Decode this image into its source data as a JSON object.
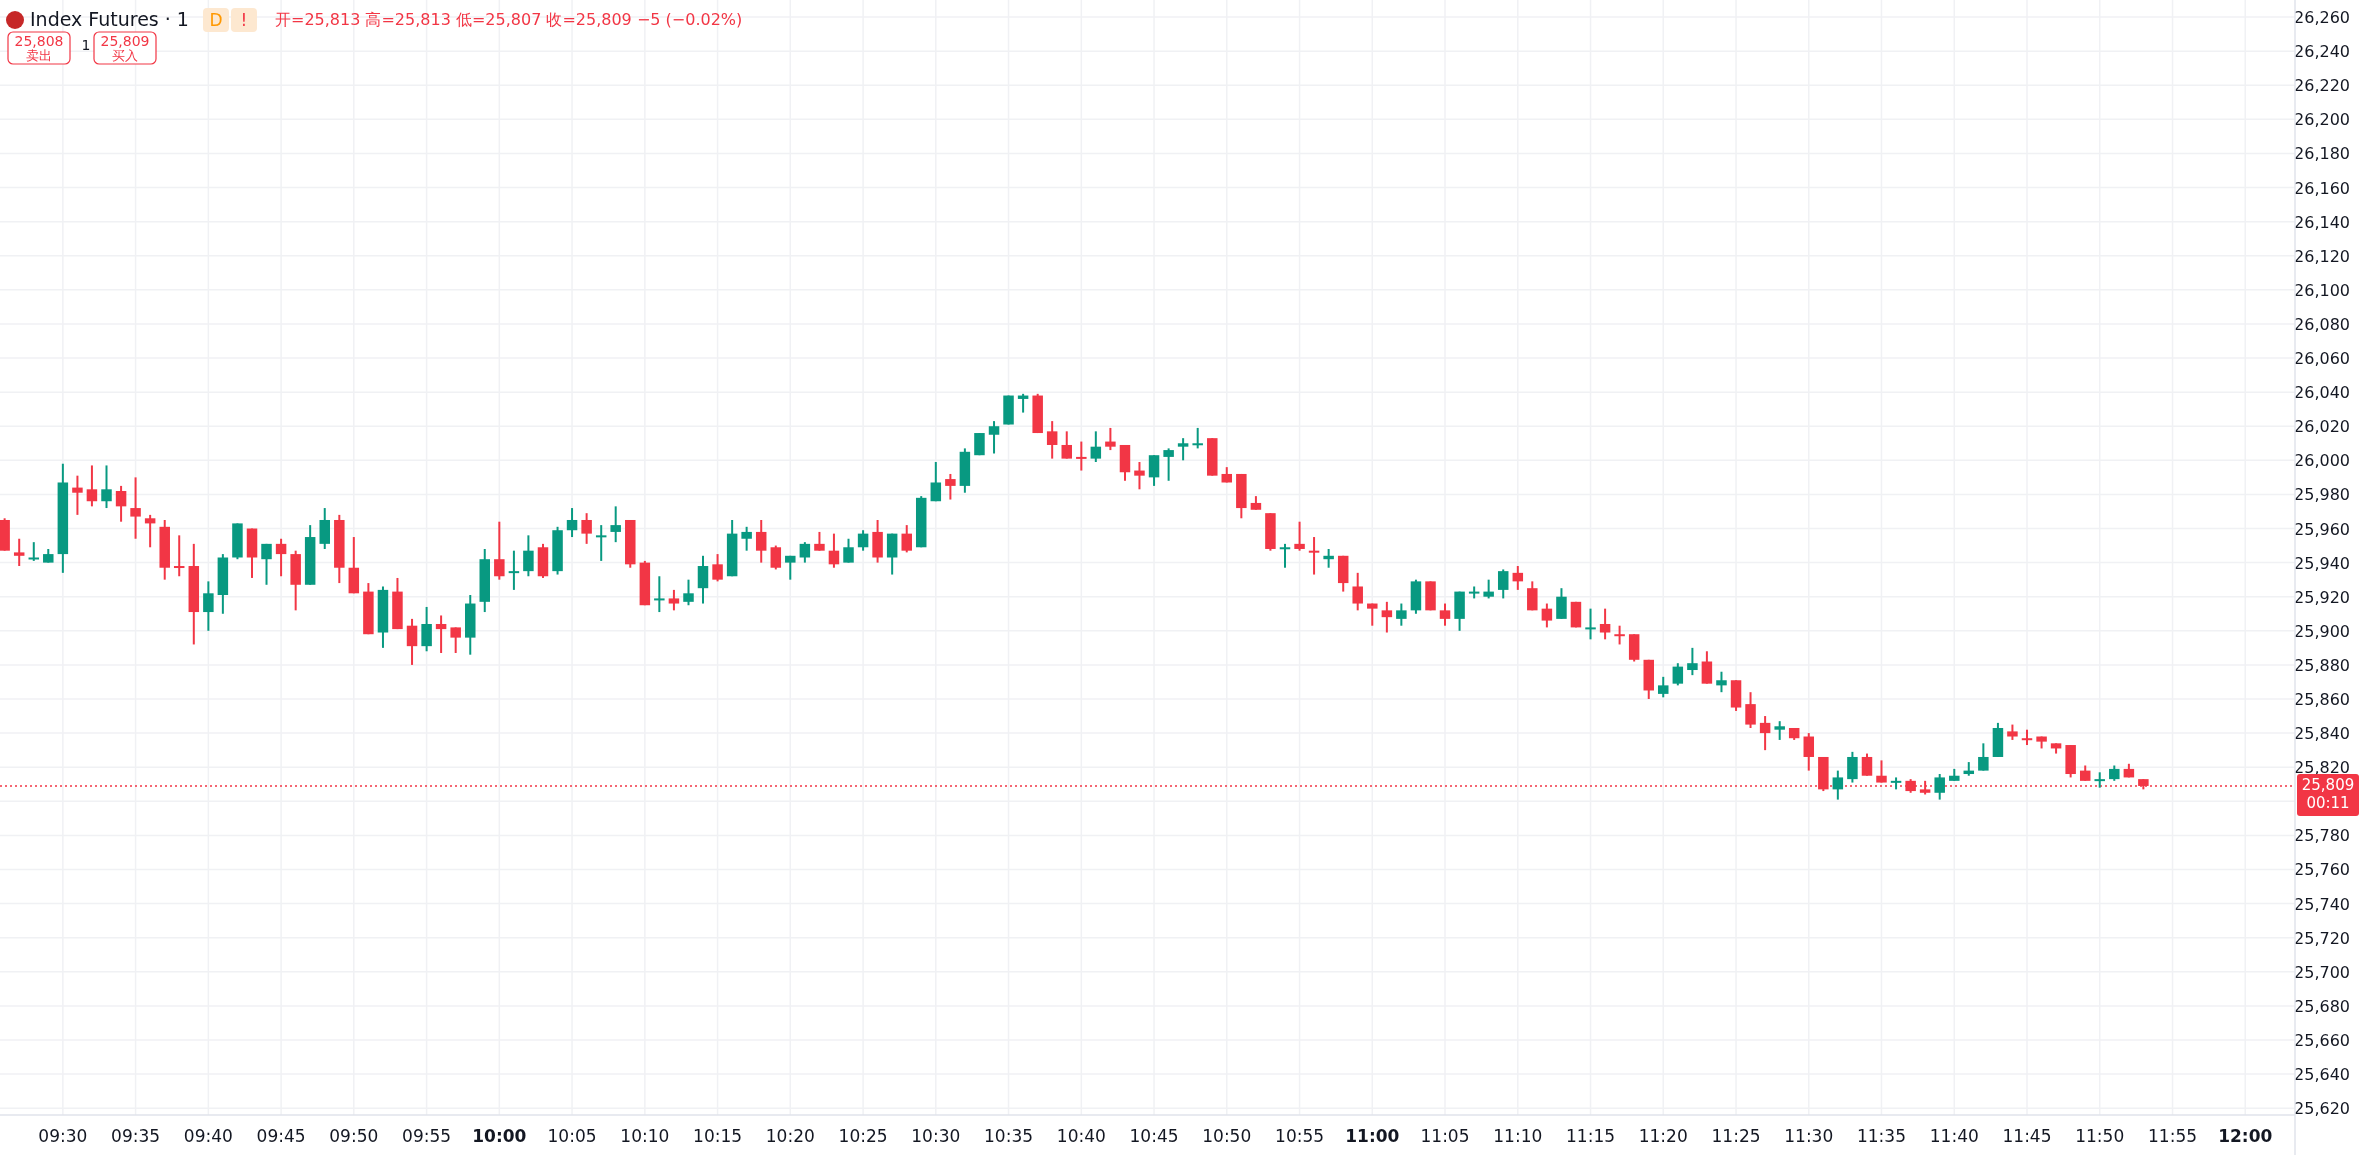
{
  "chart_data": {
    "type": "candlestick",
    "title": "Index Futures · 1",
    "subtitle": "开=25,813 高=25,813 低=25,807 收=25,809 −5 (−0.02%)",
    "annotations": [
      "D",
      "!",
      "25,808\n卖出",
      "1",
      "25,809\n买入"
    ],
    "x": [
      9.4333,
      9.45,
      9.4667,
      9.4833,
      9.5,
      9.5167,
      9.5333,
      9.55,
      9.5667,
      9.5833,
      9.6,
      9.6167,
      9.6333,
      9.65,
      9.6667,
      9.6833,
      9.7,
      9.7167,
      9.7333,
      9.75,
      9.7667,
      9.7833,
      9.8,
      9.8167,
      9.8333,
      9.85,
      9.8667,
      9.8833,
      9.9,
      9.9167,
      9.9333,
      9.95,
      9.9667,
      9.9833,
      10,
      10.0167,
      10.0333,
      10.05,
      10.0667,
      10.0833,
      10.1,
      10.1167,
      10.1333,
      10.15,
      10.1667,
      10.1833,
      10.2,
      10.2167,
      10.2333,
      10.25,
      10.2667,
      10.2833,
      10.3,
      10.3167,
      10.3333,
      10.35,
      10.3667,
      10.3833,
      10.4,
      10.4167,
      10.4333,
      10.45,
      10.4667,
      10.4833,
      10.5,
      10.5167,
      10.5333,
      10.55,
      10.5667,
      10.5833,
      10.6,
      10.6167,
      10.6333,
      10.65,
      10.6667,
      10.6833,
      10.7,
      10.7167,
      10.7333,
      10.75,
      10.7667,
      10.7833,
      10.8,
      10.8167,
      10.8333,
      10.85,
      10.8667,
      10.8833,
      10.9,
      10.9167,
      10.9333,
      10.95,
      10.9667,
      10.9833,
      11,
      11.0167,
      11.0333,
      11.05,
      11.0667,
      11.0833,
      11.1,
      11.1167,
      11.1333,
      11.15,
      11.1667,
      11.1833,
      11.2,
      11.2167,
      11.2333,
      11.25,
      11.2667,
      11.2833,
      11.3,
      11.3167,
      11.3333,
      11.35,
      11.3667,
      11.3833,
      11.4,
      11.4167,
      11.4333,
      11.45,
      11.4667,
      11.4833,
      11.5,
      11.5167,
      11.5333,
      11.55,
      11.5667,
      11.5833,
      11.6,
      11.6167,
      11.6333,
      11.65,
      11.6667,
      11.6833,
      11.7,
      11.7167,
      11.7333,
      11.75,
      11.7667,
      11.7833,
      11.8,
      11.8167,
      11.8333,
      11.85,
      11.8667,
      11.8833
    ],
    "ohlc": [
      [
        25965,
        25966,
        25947,
        25947
      ],
      [
        25946,
        25954,
        25938,
        25944
      ],
      [
        25942,
        25952,
        25941,
        25943
      ],
      [
        25940,
        25948,
        25940,
        25945
      ],
      [
        25945,
        25998,
        25934,
        25987
      ],
      [
        25984,
        25991,
        25968,
        25981
      ],
      [
        25983,
        25997,
        25973,
        25976
      ],
      [
        25976,
        25997,
        25972,
        25983
      ],
      [
        25982,
        25985,
        25964,
        25973
      ],
      [
        25972,
        25990,
        25954,
        25967
      ],
      [
        25966,
        25968,
        25949,
        25963
      ],
      [
        25961,
        25965,
        25930,
        25937
      ],
      [
        25938,
        25956,
        25932,
        25937
      ],
      [
        25938,
        25951,
        25892,
        25911
      ],
      [
        25911,
        25929,
        25900,
        25922
      ],
      [
        25921,
        25945,
        25910,
        25943
      ],
      [
        25943,
        25963,
        25942,
        25963
      ],
      [
        25960,
        25960,
        25931,
        25943
      ],
      [
        25942,
        25951,
        25927,
        25951
      ],
      [
        25951,
        25954,
        25932,
        25945
      ],
      [
        25945,
        25947,
        25912,
        25927
      ],
      [
        25927,
        25962,
        25927,
        25955
      ],
      [
        25951,
        25972,
        25948,
        25965
      ],
      [
        25965,
        25968,
        25928,
        25937
      ],
      [
        25937,
        25955,
        25922,
        25922
      ],
      [
        25923,
        25928,
        25898,
        25898
      ],
      [
        25899,
        25926,
        25890,
        25924
      ],
      [
        25923,
        25931,
        25901,
        25901
      ],
      [
        25903,
        25907,
        25880,
        25891
      ],
      [
        25891,
        25914,
        25888,
        25904
      ],
      [
        25904,
        25909,
        25887,
        25901
      ],
      [
        25902,
        25902,
        25887,
        25896
      ],
      [
        25896,
        25921,
        25886,
        25916
      ],
      [
        25917,
        25948,
        25911,
        25942
      ],
      [
        25942,
        25964,
        25930,
        25932
      ],
      [
        25934,
        25947,
        25924,
        25935
      ],
      [
        25935,
        25956,
        25932,
        25947
      ],
      [
        25949,
        25951,
        25931,
        25932
      ],
      [
        25935,
        25961,
        25933,
        25959
      ],
      [
        25959,
        25972,
        25955,
        25965
      ],
      [
        25965,
        25969,
        25951,
        25957
      ],
      [
        25955,
        25962,
        25941,
        25956
      ],
      [
        25958,
        25973,
        25952,
        25962
      ],
      [
        25965,
        25965,
        25937,
        25939
      ],
      [
        25940,
        25941,
        25915,
        25915
      ],
      [
        25918,
        25932,
        25911,
        25919
      ],
      [
        25919,
        25924,
        25912,
        25916
      ],
      [
        25917,
        25930,
        25915,
        25922
      ],
      [
        25925,
        25944,
        25916,
        25938
      ],
      [
        25939,
        25945,
        25929,
        25930
      ],
      [
        25932,
        25965,
        25932,
        25957
      ],
      [
        25954,
        25961,
        25947,
        25958
      ],
      [
        25958,
        25965,
        25940,
        25947
      ],
      [
        25949,
        25950,
        25936,
        25937
      ],
      [
        25940,
        25944,
        25930,
        25944
      ],
      [
        25943,
        25952,
        25940,
        25951
      ],
      [
        25951,
        25958,
        25947,
        25947
      ],
      [
        25947,
        25957,
        25937,
        25939
      ],
      [
        25940,
        25954,
        25940,
        25949
      ],
      [
        25949,
        25959,
        25947,
        25957
      ],
      [
        25958,
        25965,
        25940,
        25943
      ],
      [
        25943,
        25957,
        25933,
        25957
      ],
      [
        25957,
        25962,
        25946,
        25947
      ],
      [
        25949,
        25979,
        25949,
        25978
      ],
      [
        25976,
        25999,
        25976,
        25987
      ],
      [
        25989,
        25992,
        25977,
        25985
      ],
      [
        25985,
        26007,
        25981,
        26005
      ],
      [
        26003,
        26016,
        26003,
        26016
      ],
      [
        26015,
        26023,
        26004,
        26020
      ],
      [
        26021,
        26038,
        26021,
        26038
      ],
      [
        26036,
        26039,
        26028,
        26038
      ],
      [
        26038,
        26039,
        26016,
        26016
      ],
      [
        26017,
        26023,
        26001,
        26009
      ],
      [
        26009,
        26017,
        26001,
        26001
      ],
      [
        26002,
        26011,
        25994,
        26001
      ],
      [
        26001,
        26017,
        25999,
        26008
      ],
      [
        26011,
        26019,
        26006,
        26008
      ],
      [
        26009,
        26009,
        25988,
        25993
      ],
      [
        25994,
        25999,
        25983,
        25991
      ],
      [
        25990,
        26003,
        25985,
        26003
      ],
      [
        26002,
        26007,
        25988,
        26006
      ],
      [
        26008,
        26013,
        26000,
        26010
      ],
      [
        26009,
        26019,
        26007,
        26010
      ],
      [
        26013,
        26013,
        25991,
        25991
      ],
      [
        25992,
        25996,
        25987,
        25987
      ],
      [
        25992,
        25992,
        25966,
        25972
      ],
      [
        25975,
        25979,
        25971,
        25971
      ],
      [
        25969,
        25969,
        25947,
        25948
      ],
      [
        25948,
        25951,
        25937,
        25949
      ],
      [
        25951,
        25964,
        25947,
        25948
      ],
      [
        25947,
        25955,
        25933,
        25946
      ],
      [
        25942,
        25948,
        25937,
        25944
      ],
      [
        25944,
        25944,
        25923,
        25928
      ],
      [
        25926,
        25934,
        25912,
        25916
      ],
      [
        25916,
        25916,
        25903,
        25913
      ],
      [
        25912,
        25917,
        25899,
        25908
      ],
      [
        25907,
        25916,
        25903,
        25912
      ],
      [
        25912,
        25930,
        25910,
        25929
      ],
      [
        25929,
        25929,
        25912,
        25912
      ],
      [
        25912,
        25916,
        25903,
        25907
      ],
      [
        25907,
        25923,
        25900,
        25923
      ],
      [
        25922,
        25926,
        25919,
        25923
      ],
      [
        25920,
        25930,
        25919,
        25923
      ],
      [
        25924,
        25936,
        25919,
        25935
      ],
      [
        25934,
        25938,
        25924,
        25929
      ],
      [
        25925,
        25929,
        25912,
        25912
      ],
      [
        25913,
        25916,
        25902,
        25906
      ],
      [
        25907,
        25925,
        25907,
        25920
      ],
      [
        25917,
        25917,
        25902,
        25902
      ],
      [
        25901,
        25913,
        25895,
        25902
      ],
      [
        25904,
        25913,
        25895,
        25899
      ],
      [
        25898,
        25903,
        25892,
        25897
      ],
      [
        25898,
        25898,
        25882,
        25883
      ],
      [
        25883,
        25883,
        25860,
        25865
      ],
      [
        25863,
        25873,
        25861,
        25868
      ],
      [
        25869,
        25881,
        25868,
        25879
      ],
      [
        25877,
        25890,
        25874,
        25881
      ],
      [
        25882,
        25888,
        25869,
        25869
      ],
      [
        25868,
        25876,
        25864,
        25871
      ],
      [
        25871,
        25871,
        25853,
        25855
      ],
      [
        25857,
        25864,
        25843,
        25845
      ],
      [
        25846,
        25850,
        25830,
        25840
      ],
      [
        25842,
        25847,
        25836,
        25844
      ],
      [
        25843,
        25843,
        25836,
        25837
      ],
      [
        25838,
        25840,
        25818,
        25826
      ],
      [
        25826,
        25826,
        25806,
        25807
      ],
      [
        25807,
        25818,
        25801,
        25814
      ],
      [
        25813,
        25829,
        25811,
        25826
      ],
      [
        25826,
        25828,
        25815,
        25815
      ],
      [
        25815,
        25824,
        25811,
        25811
      ],
      [
        25811,
        25814,
        25807,
        25812
      ],
      [
        25812,
        25813,
        25805,
        25806
      ],
      [
        25807,
        25812,
        25804,
        25805
      ],
      [
        25805,
        25816,
        25801,
        25814
      ],
      [
        25812,
        25819,
        25812,
        25815
      ],
      [
        25816,
        25823,
        25815,
        25818
      ],
      [
        25818,
        25834,
        25818,
        25826
      ],
      [
        25826,
        25846,
        25826,
        25843
      ],
      [
        25841,
        25845,
        25836,
        25838
      ],
      [
        25837,
        25842,
        25833,
        25836
      ],
      [
        25838,
        25838,
        25831,
        25835
      ],
      [
        25834,
        25834,
        25828,
        25831
      ],
      [
        25833,
        25833,
        25814,
        25816
      ],
      [
        25818,
        25821,
        25812,
        25812
      ],
      [
        25812,
        25817,
        25808,
        25813
      ],
      [
        25813,
        25821,
        25812,
        25819
      ],
      [
        25819,
        25822,
        25814,
        25814
      ],
      [
        25813,
        25813,
        25807,
        25809
      ]
    ],
    "colors": [
      "#f23645",
      "#f23645",
      "#089981",
      "#089981",
      "#089981",
      "#f23645",
      "#f23645",
      "#089981",
      "#f23645",
      "#f23645",
      "#f23645",
      "#f23645",
      "#f23645",
      "#f23645",
      "#089981",
      "#089981",
      "#089981",
      "#f23645",
      "#089981",
      "#f23645",
      "#f23645",
      "#089981",
      "#089981",
      "#f23645",
      "#f23645",
      "#f23645",
      "#089981",
      "#f23645",
      "#f23645",
      "#089981",
      "#f23645",
      "#f23645",
      "#089981",
      "#089981",
      "#f23645",
      "#089981",
      "#089981",
      "#f23645",
      "#089981",
      "#089981",
      "#f23645",
      "#089981",
      "#089981",
      "#f23645",
      "#f23645",
      "#089981",
      "#f23645",
      "#089981",
      "#089981",
      "#f23645",
      "#089981",
      "#089981",
      "#f23645",
      "#f23645",
      "#089981",
      "#089981",
      "#f23645",
      "#f23645",
      "#089981",
      "#089981",
      "#f23645",
      "#089981",
      "#f23645",
      "#089981",
      "#089981",
      "#f23645",
      "#089981",
      "#089981",
      "#089981",
      "#089981",
      "#089981",
      "#f23645",
      "#f23645",
      "#f23645",
      "#f23645",
      "#089981",
      "#f23645",
      "#f23645",
      "#f23645",
      "#089981",
      "#089981",
      "#089981",
      "#089981",
      "#f23645",
      "#f23645",
      "#f23645",
      "#f23645",
      "#f23645",
      "#089981",
      "#f23645",
      "#f23645",
      "#089981",
      "#f23645",
      "#f23645",
      "#f23645",
      "#f23645",
      "#089981",
      "#089981",
      "#f23645",
      "#f23645",
      "#089981",
      "#089981",
      "#089981",
      "#089981",
      "#f23645",
      "#f23645",
      "#f23645",
      "#089981",
      "#f23645",
      "#089981",
      "#f23645",
      "#f23645",
      "#f23645",
      "#f23645",
      "#089981",
      "#089981",
      "#089981",
      "#f23645",
      "#089981",
      "#f23645",
      "#f23645",
      "#f23645",
      "#089981",
      "#f23645",
      "#f23645",
      "#f23645",
      "#089981",
      "#089981",
      "#f23645",
      "#f23645",
      "#089981",
      "#f23645",
      "#f23645",
      "#089981",
      "#089981",
      "#089981",
      "#089981",
      "#089981",
      "#f23645",
      "#f23645",
      "#f23645",
      "#f23645",
      "#f23645",
      "#f23645",
      "#089981",
      "#089981",
      "#f23645",
      "#f23645"
    ],
    "xlim": [
      9.428,
      12.057
    ],
    "ylim": [
      25616,
      26270
    ],
    "xticks": [
      {
        "value": 9.5,
        "label": "09:30"
      },
      {
        "value": 9.5833,
        "label": "09:35"
      },
      {
        "value": 9.6667,
        "label": "09:40"
      },
      {
        "value": 9.75,
        "label": "09:45"
      },
      {
        "value": 9.8333,
        "label": "09:50"
      },
      {
        "value": 9.9167,
        "label": "09:55"
      },
      {
        "value": 10,
        "label": "10:00"
      },
      {
        "value": 10.0833,
        "label": "10:05"
      },
      {
        "value": 10.1667,
        "label": "10:10"
      },
      {
        "value": 10.25,
        "label": "10:15"
      },
      {
        "value": 10.3333,
        "label": "10:20"
      },
      {
        "value": 10.4167,
        "label": "10:25"
      },
      {
        "value": 10.5,
        "label": "10:30"
      },
      {
        "value": 10.5833,
        "label": "10:35"
      },
      {
        "value": 10.6667,
        "label": "10:40"
      },
      {
        "value": 10.75,
        "label": "10:45"
      },
      {
        "value": 10.8333,
        "label": "10:50"
      },
      {
        "value": 10.9167,
        "label": "10:55"
      },
      {
        "value": 11,
        "label": "11:00"
      },
      {
        "value": 11.0833,
        "label": "11:05"
      },
      {
        "value": 11.1667,
        "label": "11:10"
      },
      {
        "value": 11.25,
        "label": "11:15"
      },
      {
        "value": 11.3333,
        "label": "11:20"
      },
      {
        "value": 11.4167,
        "label": "11:25"
      },
      {
        "value": 11.5,
        "label": "11:30"
      },
      {
        "value": 11.5833,
        "label": "11:35"
      },
      {
        "value": 11.6667,
        "label": "11:40"
      },
      {
        "value": 11.75,
        "label": "11:45"
      },
      {
        "value": 11.8333,
        "label": "11:50"
      },
      {
        "value": 11.9167,
        "label": "11:55"
      },
      {
        "value": 12,
        "label": "12:00"
      }
    ],
    "yticks": [
      {
        "value": 25620,
        "label": "25,620"
      },
      {
        "value": 25640,
        "label": "25,640"
      },
      {
        "value": 25660,
        "label": "25,660"
      },
      {
        "value": 25680,
        "label": "25,680"
      },
      {
        "value": 25700,
        "label": "25,700"
      },
      {
        "value": 25720,
        "label": "25,720"
      },
      {
        "value": 25740,
        "label": "25,740"
      },
      {
        "value": 25760,
        "label": "25,760"
      },
      {
        "value": 25780,
        "label": "25,780"
      },
      {
        "value": 25800,
        "label": null
      },
      {
        "value": 25820,
        "label": "25,820"
      },
      {
        "value": 25840,
        "label": "25,840"
      },
      {
        "value": 25860,
        "label": "25,860"
      },
      {
        "value": 25880,
        "label": "25,880"
      },
      {
        "value": 25900,
        "label": "25,900"
      },
      {
        "value": 25920,
        "label": "25,920"
      },
      {
        "value": 25940,
        "label": "25,940"
      },
      {
        "value": 25960,
        "label": "25,960"
      },
      {
        "value": 25980,
        "label": "25,980"
      },
      {
        "value": 26000,
        "label": "26,000"
      },
      {
        "value": 26020,
        "label": "26,020"
      },
      {
        "value": 26040,
        "label": "26,040"
      },
      {
        "value": 26060,
        "label": "26,060"
      },
      {
        "value": 26080,
        "label": "26,080"
      },
      {
        "value": 26100,
        "label": "26,100"
      },
      {
        "value": 26120,
        "label": "26,120"
      },
      {
        "value": 26140,
        "label": "26,140"
      },
      {
        "value": 26160,
        "label": "26,160"
      },
      {
        "value": 26180,
        "label": "26,180"
      },
      {
        "value": 26200,
        "label": "26,200"
      },
      {
        "value": 26220,
        "label": "26,220"
      },
      {
        "value": 26240,
        "label": "26,240"
      },
      {
        "value": 26260,
        "label": "26,260"
      }
    ],
    "ref_lines": [
      {
        "axis": "y",
        "value": 25809,
        "label": "25,809\n00:11",
        "color": "#f23645",
        "line_style": "dotted"
      }
    ],
    "grid": true
  }
}
